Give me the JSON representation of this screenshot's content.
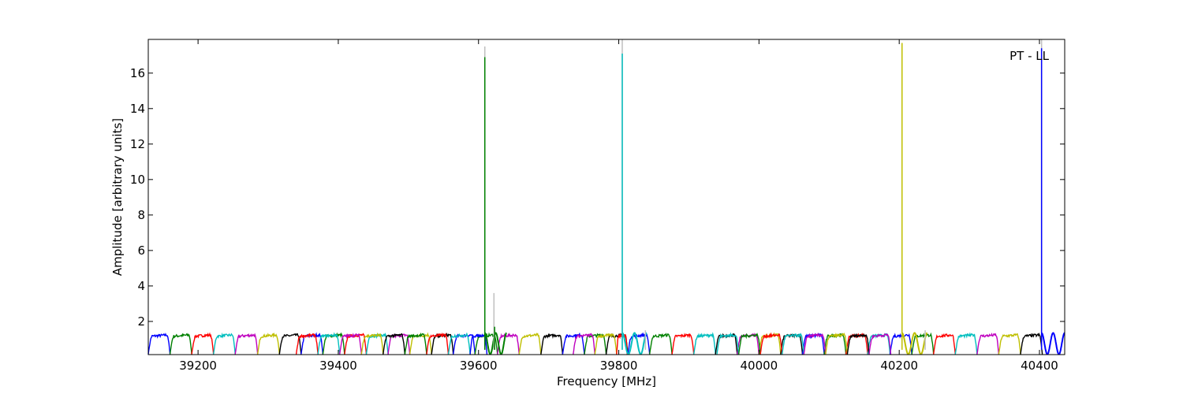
{
  "chart_data": {
    "type": "line",
    "title": "",
    "annotation": "PT - LL",
    "xlabel": "Frequency [MHz]",
    "ylabel": "Amplitude [arbitrary units]",
    "xlim": [
      39129,
      40436
    ],
    "ylim": [
      0.13,
      17.9
    ],
    "xticks": [
      39200,
      39400,
      39600,
      39800,
      40000,
      40200,
      40400
    ],
    "yticks": [
      2,
      4,
      6,
      8,
      10,
      12,
      14,
      16
    ],
    "grid": false,
    "segment_level": 1.2,
    "segment_floor": 0.15,
    "segments": [
      [
        39129,
        39160,
        "#0000ff"
      ],
      [
        39160,
        39191,
        "#008000"
      ],
      [
        39191,
        39222,
        "#ff0000"
      ],
      [
        39222,
        39253,
        "#00bfbf"
      ],
      [
        39253,
        39285,
        "#bf00bf"
      ],
      [
        39285,
        39316,
        "#bfbf00"
      ],
      [
        39316,
        39347,
        "#000000"
      ],
      [
        39347,
        39378,
        "#0000ff"
      ],
      [
        39378,
        39409,
        "#008000"
      ],
      [
        39409,
        39440,
        "#ff0000"
      ],
      [
        39440,
        39471,
        "#00bfbf"
      ],
      [
        39471,
        39502,
        "#bf00bf"
      ],
      [
        39502,
        39533,
        "#bfbf00"
      ],
      [
        39533,
        39564,
        "#000000"
      ],
      [
        39564,
        39595,
        "#0000ff"
      ],
      [
        39595,
        39627,
        "#008000"
      ],
      [
        39627,
        39658,
        "#bf00bf"
      ],
      [
        39658,
        39689,
        "#bfbf00"
      ],
      [
        39689,
        39720,
        "#000000"
      ],
      [
        39720,
        39751,
        "#0000ff"
      ],
      [
        39751,
        39782,
        "#008000"
      ],
      [
        39782,
        39813,
        "#000000"
      ],
      [
        39813,
        39844,
        "#0000ff"
      ],
      [
        39844,
        39876,
        "#008000"
      ],
      [
        39876,
        39907,
        "#ff0000"
      ],
      [
        39907,
        39938,
        "#00bfbf"
      ],
      [
        39938,
        39969,
        "#000000"
      ],
      [
        39969,
        40000,
        "#bf00bf"
      ],
      [
        40000,
        40031,
        "#bfbf00"
      ],
      [
        40031,
        40062,
        "#000000"
      ],
      [
        40062,
        40093,
        "#0000ff"
      ],
      [
        40093,
        40124,
        "#008000"
      ],
      [
        40124,
        40155,
        "#ff0000"
      ],
      [
        40155,
        40187,
        "#00bfbf"
      ],
      [
        40187,
        40218,
        "#0000ff"
      ],
      [
        40218,
        40249,
        "#008000"
      ],
      [
        40249,
        40280,
        "#ff0000"
      ],
      [
        40280,
        40311,
        "#00bfbf"
      ],
      [
        40311,
        40342,
        "#bf00bf"
      ],
      [
        40342,
        40373,
        "#bfbf00"
      ],
      [
        40373,
        40404,
        "#000000"
      ],
      [
        39340,
        39371,
        "#ff0000"
      ],
      [
        39371,
        39402,
        "#00bfbf"
      ],
      [
        39402,
        39433,
        "#bf00bf"
      ],
      [
        39433,
        39464,
        "#bfbf00"
      ],
      [
        39464,
        39495,
        "#000000"
      ],
      [
        39495,
        39526,
        "#008000"
      ],
      [
        39526,
        39557,
        "#ff0000"
      ],
      [
        39557,
        39588,
        "#00bfbf"
      ],
      [
        39588,
        39612,
        "#0000ff"
      ],
      [
        39735,
        39766,
        "#bf00bf"
      ],
      [
        39766,
        39797,
        "#bfbf00"
      ],
      [
        39797,
        39812,
        "#ff0000"
      ],
      [
        39940,
        39971,
        "#00bfbf"
      ],
      [
        39971,
        40002,
        "#008000"
      ],
      [
        40002,
        40033,
        "#ff0000"
      ],
      [
        40033,
        40064,
        "#00bfbf"
      ],
      [
        40064,
        40095,
        "#bf00bf"
      ],
      [
        40095,
        40126,
        "#bfbf00"
      ],
      [
        40126,
        40157,
        "#000000"
      ],
      [
        40157,
        40188,
        "#bf00bf"
      ]
    ],
    "spikes": [
      [
        39609,
        17.5,
        "#bfbfbf"
      ],
      [
        39609,
        16.9,
        "#008000"
      ],
      [
        39622,
        3.6,
        "#bfbfbf"
      ],
      [
        39623,
        1.7,
        "#008000"
      ],
      [
        39805,
        17.9,
        "#bfbfbf"
      ],
      [
        39805,
        17.1,
        "#00bfbf"
      ],
      [
        39838,
        1.5,
        "#bfbfbf"
      ],
      [
        40204,
        17.7,
        "#bfbf00"
      ],
      [
        40237,
        1.5,
        "#bfbfbf"
      ],
      [
        40403,
        17.9,
        "#bfbfbf"
      ],
      [
        40403,
        17.4,
        "#0000ff"
      ]
    ],
    "ripples": [
      [
        39609,
        39640,
        "#008000"
      ],
      [
        39805,
        39840,
        "#00bfbf"
      ],
      [
        40204,
        40240,
        "#bfbf00"
      ],
      [
        40403,
        40436,
        "#0000ff"
      ]
    ]
  }
}
